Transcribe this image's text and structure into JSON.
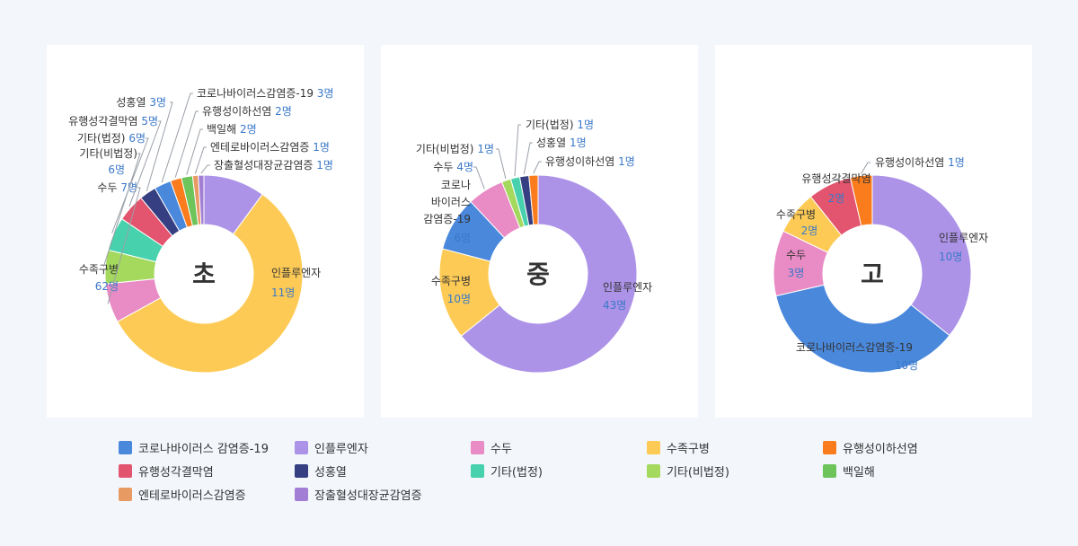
{
  "colors": {
    "covid": "#4a88dc",
    "flu": "#ad93e8",
    "chickenpox": "#e98bc4",
    "hfmd": "#fdcb55",
    "mumps": "#fa7c1c",
    "mening": "#e3546e",
    "scarlet": "#363f82",
    "other_legal": "#47d1ad",
    "other_nonlegal": "#a4d95e",
    "pertussis": "#6dc45a",
    "entero": "#e89a63",
    "ehec": "#a27fd5"
  },
  "legend": [
    {
      "key": "covid",
      "label": "코로나바이러스 감염증-19"
    },
    {
      "key": "flu",
      "label": "인플루엔자"
    },
    {
      "key": "chickenpox",
      "label": "수두"
    },
    {
      "key": "hfmd",
      "label": "수족구병"
    },
    {
      "key": "mumps",
      "label": "유행성이하선염"
    },
    {
      "key": "mening",
      "label": "유행성각결막염"
    },
    {
      "key": "scarlet",
      "label": "성홍열"
    },
    {
      "key": "other_legal",
      "label": "기타(법정)"
    },
    {
      "key": "other_nonlegal",
      "label": "기타(비법정)"
    },
    {
      "key": "pertussis",
      "label": "백일해"
    },
    {
      "key": "entero",
      "label": "엔테로바이러스감염증"
    },
    {
      "key": "ehec",
      "label": "장출혈성대장균감염증"
    }
  ],
  "chart_data": [
    {
      "type": "pie",
      "title": "초",
      "unit": "명",
      "slices": [
        {
          "key": "flu",
          "name": "인플루엔자",
          "value": 11,
          "value_label": "11명"
        },
        {
          "key": "hfmd",
          "name": "수족구병",
          "value": 62,
          "value_label": "62명"
        },
        {
          "key": "chickenpox",
          "name": "수두",
          "value": 7,
          "value_label": "7명"
        },
        {
          "key": "other_nonlegal",
          "name": "기타(비법정)",
          "value": 6,
          "value_label": "6명"
        },
        {
          "key": "other_legal",
          "name": "기타(법정)",
          "value": 6,
          "value_label": "6명"
        },
        {
          "key": "mening",
          "name": "유행성각결막염",
          "value": 5,
          "value_label": "5명"
        },
        {
          "key": "scarlet",
          "name": "성홍열",
          "value": 3,
          "value_label": "3명"
        },
        {
          "key": "covid",
          "name": "코로나바이러스감염증-19",
          "value": 3,
          "value_label": "3명"
        },
        {
          "key": "mumps",
          "name": "유행성이하선염",
          "value": 2,
          "value_label": "2명"
        },
        {
          "key": "pertussis",
          "name": "백일해",
          "value": 2,
          "value_label": "2명"
        },
        {
          "key": "entero",
          "name": "엔테로바이러스감염증",
          "value": 1,
          "value_label": "1명"
        },
        {
          "key": "ehec",
          "name": "장출혈성대장균감염증",
          "value": 1,
          "value_label": "1명"
        }
      ]
    },
    {
      "type": "pie",
      "title": "중",
      "unit": "명",
      "slices": [
        {
          "key": "flu",
          "name": "인플루엔자",
          "value": 43,
          "value_label": "43명"
        },
        {
          "key": "hfmd",
          "name": "수족구병",
          "value": 10,
          "value_label": "10명"
        },
        {
          "key": "covid",
          "name": "코로나 바이러스 감염증-19",
          "value": 6,
          "value_label": "6명"
        },
        {
          "key": "chickenpox",
          "name": "수두",
          "value": 4,
          "value_label": "4명"
        },
        {
          "key": "other_nonlegal",
          "name": "기타(비법정)",
          "value": 1,
          "value_label": "1명"
        },
        {
          "key": "other_legal",
          "name": "기타(법정)",
          "value": 1,
          "value_label": "1명"
        },
        {
          "key": "scarlet",
          "name": "성홍열",
          "value": 1,
          "value_label": "1명"
        },
        {
          "key": "mumps",
          "name": "유행성이하선염",
          "value": 1,
          "value_label": "1명"
        }
      ]
    },
    {
      "type": "pie",
      "title": "고",
      "unit": "명",
      "slices": [
        {
          "key": "flu",
          "name": "인플루엔자",
          "value": 10,
          "value_label": "10명"
        },
        {
          "key": "covid",
          "name": "코로나바이러스감염증-19",
          "value": 10,
          "value_label": "10명"
        },
        {
          "key": "chickenpox",
          "name": "수두",
          "value": 3,
          "value_label": "3명"
        },
        {
          "key": "hfmd",
          "name": "수족구병",
          "value": 2,
          "value_label": "2명"
        },
        {
          "key": "mening",
          "name": "유행성각결막염",
          "value": 2,
          "value_label": "2명"
        },
        {
          "key": "mumps",
          "name": "유행성이하선염",
          "value": 1,
          "value_label": "1명"
        }
      ]
    }
  ]
}
